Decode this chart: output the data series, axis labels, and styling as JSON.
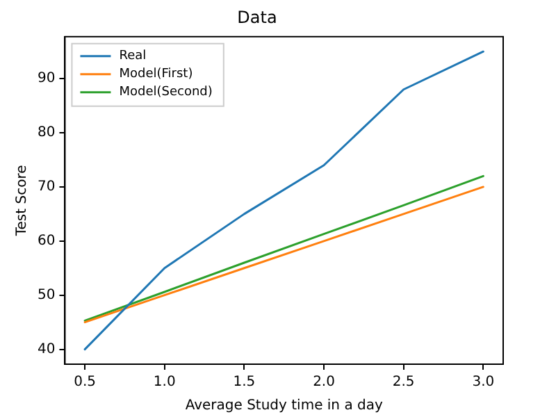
{
  "chart_data": {
    "type": "line",
    "title": "Data",
    "xlabel": "Average Study time in a day",
    "ylabel": "Test Score",
    "x": [
      0.5,
      1.0,
      1.5,
      2.0,
      2.5,
      3.0
    ],
    "series": [
      {
        "name": "Real",
        "color": "#1f77b4",
        "values": [
          40,
          55,
          65,
          74,
          88,
          95
        ]
      },
      {
        "name": "Model(First)",
        "color": "#ff7f0e",
        "values": [
          45,
          50,
          55,
          60,
          65,
          70
        ]
      },
      {
        "name": "Model(Second)",
        "color": "#2ca02c",
        "values": [
          45.3,
          50.6,
          56,
          61.3,
          66.6,
          72
        ]
      }
    ],
    "xlim": [
      0.375,
      3.125
    ],
    "xticks": [
      {
        "value": 0.5,
        "label": "0.5"
      },
      {
        "value": 1,
        "label": "1.0"
      },
      {
        "value": 1.5,
        "label": "1.5"
      },
      {
        "value": 2,
        "label": "2.0"
      },
      {
        "value": 2.5,
        "label": "2.5"
      },
      {
        "value": 3,
        "label": "3.0"
      }
    ],
    "ylim": [
      37.25,
      97.75
    ],
    "yticks": [
      40,
      50,
      60,
      70,
      80,
      90
    ],
    "grid": false,
    "legend": "top left",
    "marker": "none",
    "line_style": "solid"
  }
}
